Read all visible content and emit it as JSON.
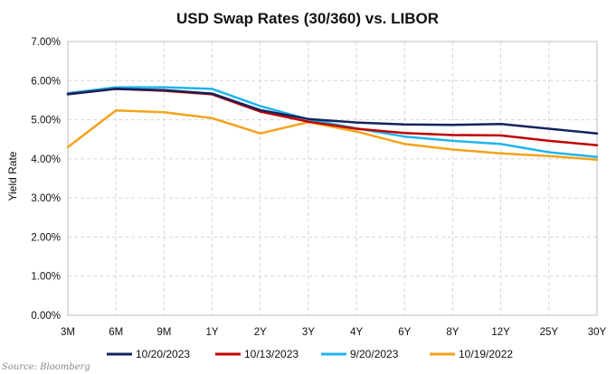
{
  "chart_data": {
    "type": "line",
    "title": "USD Swap Rates (30/360) vs. LIBOR",
    "xlabel": "",
    "ylabel": "Yield Rate",
    "categories": [
      "3M",
      "6M",
      "9M",
      "1Y",
      "2Y",
      "3Y",
      "4Y",
      "6Y",
      "8Y",
      "12Y",
      "25Y",
      "30Y"
    ],
    "ylim": [
      0,
      7
    ],
    "yticks": [
      "0.00%",
      "1.00%",
      "2.00%",
      "3.00%",
      "4.00%",
      "5.00%",
      "6.00%",
      "7.00%"
    ],
    "grid": true,
    "legend_position": "bottom",
    "series": [
      {
        "name": "10/20/2023",
        "color": "#13235c",
        "values": [
          5.65,
          5.79,
          5.76,
          5.67,
          5.25,
          5.02,
          4.93,
          4.88,
          4.87,
          4.89,
          4.77,
          4.65
        ]
      },
      {
        "name": "10/13/2023",
        "color": "#c00000",
        "values": [
          5.66,
          5.79,
          5.74,
          5.65,
          5.21,
          4.95,
          4.77,
          4.66,
          4.61,
          4.6,
          4.46,
          4.35
        ]
      },
      {
        "name": "9/20/2023",
        "color": "#1fb4ec",
        "values": [
          5.68,
          5.83,
          5.83,
          5.79,
          5.35,
          5.01,
          4.78,
          4.57,
          4.46,
          4.38,
          4.17,
          4.05
        ]
      },
      {
        "name": "10/19/2022",
        "color": "#f5a21b",
        "values": [
          4.3,
          5.24,
          5.19,
          5.04,
          4.65,
          4.94,
          4.7,
          4.38,
          4.24,
          4.14,
          4.07,
          3.98
        ]
      }
    ]
  },
  "source": "Source: Bloomberg"
}
